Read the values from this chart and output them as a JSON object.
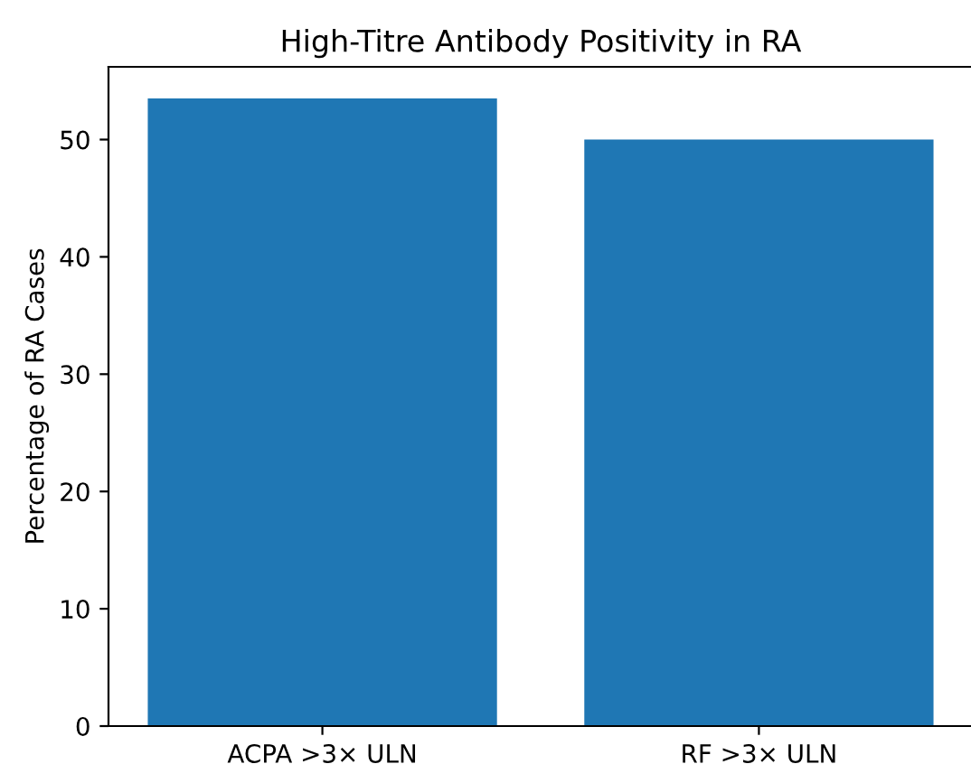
{
  "chart_data": {
    "type": "bar",
    "title": "High-Titre Antibody Positivity in RA",
    "ylabel": "Percentage of RA Cases",
    "categories": [
      "ACPA >3× ULN",
      "RF >3× ULN"
    ],
    "values": [
      53.5,
      50.0
    ],
    "color": "#1f77b4",
    "ylim": [
      0,
      56.2
    ],
    "yticks": [
      0,
      10,
      20,
      30,
      40,
      50
    ],
    "grid": false,
    "legend": false
  }
}
